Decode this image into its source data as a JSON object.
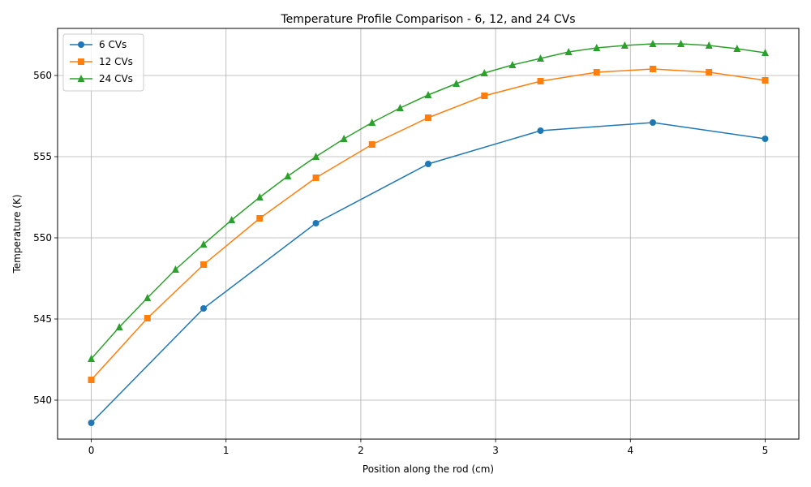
{
  "chart_data": {
    "type": "line",
    "title": "Temperature Profile Comparison - 6, 12, and 24 CVs",
    "xlabel": "Position along the rod (cm)",
    "ylabel": "Temperature (K)",
    "xlim": [
      -0.25,
      5.25
    ],
    "ylim": [
      537.6,
      562.9
    ],
    "xticks": [
      0,
      1,
      2,
      3,
      4,
      5
    ],
    "yticks": [
      540,
      545,
      550,
      555,
      560
    ],
    "grid": true,
    "legend_position": "upper-left",
    "series": [
      {
        "name": "6 CVs",
        "color": "#1f77b4",
        "marker": "circle",
        "points": [
          [
            0,
            538.6
          ],
          [
            0.8333,
            545.65
          ],
          [
            1.6667,
            550.9
          ],
          [
            2.5,
            554.55
          ],
          [
            3.3333,
            556.6
          ],
          [
            4.1667,
            557.1
          ],
          [
            5.0,
            556.1
          ]
        ]
      },
      {
        "name": "12 CVs",
        "color": "#ff7f0e",
        "marker": "square",
        "points": [
          [
            0,
            541.25
          ],
          [
            0.4167,
            545.05
          ],
          [
            0.8333,
            548.35
          ],
          [
            1.25,
            551.2
          ],
          [
            1.6667,
            553.7
          ],
          [
            2.0833,
            555.75
          ],
          [
            2.5,
            557.4
          ],
          [
            2.9167,
            558.75
          ],
          [
            3.3333,
            559.65
          ],
          [
            3.75,
            560.2
          ],
          [
            4.1667,
            560.4
          ],
          [
            4.5833,
            560.2
          ],
          [
            5.0,
            559.7
          ]
        ]
      },
      {
        "name": "24 CVs",
        "color": "#2ca02c",
        "marker": "triangle",
        "points": [
          [
            0,
            542.55
          ],
          [
            0.2083,
            544.5
          ],
          [
            0.4167,
            546.3
          ],
          [
            0.625,
            548.05
          ],
          [
            0.8333,
            549.6
          ],
          [
            1.0417,
            551.1
          ],
          [
            1.25,
            552.5
          ],
          [
            1.4583,
            553.8
          ],
          [
            1.6667,
            555.0
          ],
          [
            1.875,
            556.1
          ],
          [
            2.0833,
            557.1
          ],
          [
            2.2917,
            558.0
          ],
          [
            2.5,
            558.8
          ],
          [
            2.7083,
            559.5
          ],
          [
            2.9167,
            560.15
          ],
          [
            3.125,
            560.65
          ],
          [
            3.3333,
            561.05
          ],
          [
            3.5417,
            561.45
          ],
          [
            3.75,
            561.7
          ],
          [
            3.9583,
            561.85
          ],
          [
            4.1667,
            561.95
          ],
          [
            4.375,
            561.95
          ],
          [
            4.5833,
            561.85
          ],
          [
            4.7917,
            561.65
          ],
          [
            5.0,
            561.4
          ]
        ]
      }
    ]
  }
}
